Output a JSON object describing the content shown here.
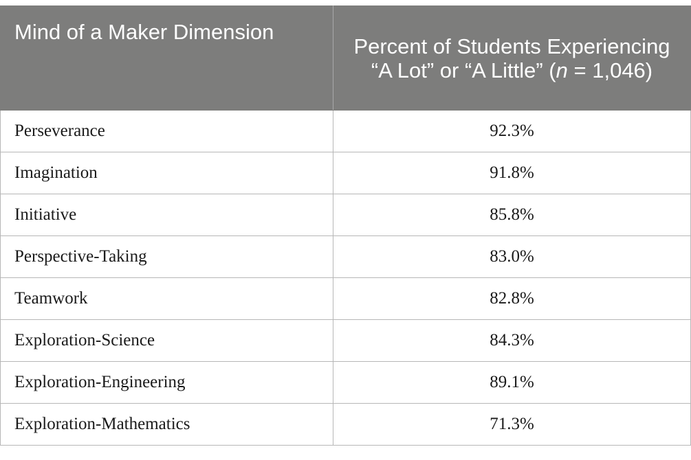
{
  "table": {
    "header": {
      "col1": "Mind of a Maker Dimension",
      "col2_before": "Percent of Students Experiencing “A Lot” or “A Little” (",
      "col2_italic": "n",
      "col2_after": " = 1,046)"
    },
    "rows": [
      {
        "dimension": "Perseverance",
        "percent": "92.3%"
      },
      {
        "dimension": "Imagination",
        "percent": "91.8%"
      },
      {
        "dimension": "Initiative",
        "percent": "85.8%"
      },
      {
        "dimension": "Perspective-Taking",
        "percent": "83.0%"
      },
      {
        "dimension": "Teamwork",
        "percent": "82.8%"
      },
      {
        "dimension": "Exploration-Science",
        "percent": "84.3%"
      },
      {
        "dimension": "Exploration-Engineering",
        "percent": "89.1%"
      },
      {
        "dimension": "Exploration-Mathematics",
        "percent": "71.3%"
      }
    ]
  }
}
